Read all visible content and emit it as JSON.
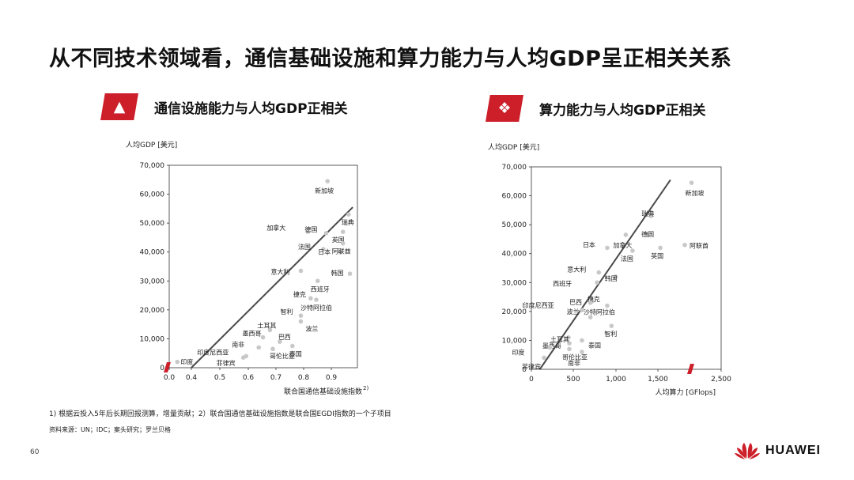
{
  "page": {
    "title": "从不同技术领域看，通信基础设施和算力能力与人均GDP呈正相关关系",
    "footnote": "1) 根据云投入5年后长期回报测算，增量贡献；2）联合国通信基础设施指数是联合国EGDI指数的一个子项目",
    "source": "资料来源：UN；IDC；案头研究；罗兰贝格",
    "page_number": "60",
    "brand": "HUAWEI",
    "accent_color": "#cc1f2a",
    "point_color": "#c8c8c8",
    "line_color": "#4a4a4a"
  },
  "panels": [
    {
      "title": "通信设施能力与人均GDP正相关",
      "icon": "telecom-tower-icon"
    },
    {
      "title": "算力能力与人均GDP正相关",
      "icon": "computing-atom-icon"
    }
  ],
  "chart_data": [
    {
      "type": "scatter",
      "title": "通信设施能力与人均GDP正相关",
      "ylabel": "人均GDP [美元]",
      "xlabel": "联合国通信基础设施指数",
      "xlabel_sup": "2)",
      "x_ticks": [
        "0.0",
        "0.4",
        "0.5",
        "0.6",
        "0.7",
        "0.8",
        "0.9"
      ],
      "y_ticks": [
        "0",
        "10,000",
        "20,000",
        "30,000",
        "40,000",
        "50,000",
        "60,000",
        "70,000"
      ],
      "axis_break": "x",
      "xlim": [
        0.33,
        1.0
      ],
      "ylim": [
        0,
        70000
      ],
      "trend_line": [
        [
          0.4,
          0
        ],
        [
          0.975,
          55500
        ]
      ],
      "points": [
        {
          "label": "新加坡",
          "x": 0.885,
          "y": 64500
        },
        {
          "label": "瑞典",
          "x": 0.96,
          "y": 53000
        },
        {
          "label": "加拿大",
          "x": 0.815,
          "y": 47000
        },
        {
          "label": "德国",
          "x": 0.88,
          "y": 46500
        },
        {
          "label": "英国",
          "x": 0.94,
          "y": 47000
        },
        {
          "label": "法国",
          "x": 0.87,
          "y": 41000
        },
        {
          "label": "日本",
          "x": 0.93,
          "y": 40000
        },
        {
          "label": "阿联酋",
          "x": 0.94,
          "y": 43000
        },
        {
          "label": "韩国",
          "x": 0.965,
          "y": 32500
        },
        {
          "label": "意大利",
          "x": 0.79,
          "y": 33500
        },
        {
          "label": "西班牙",
          "x": 0.85,
          "y": 30000
        },
        {
          "label": "捷克",
          "x": 0.825,
          "y": 24000
        },
        {
          "label": "沙特阿拉伯",
          "x": 0.845,
          "y": 23500
        },
        {
          "label": "智利",
          "x": 0.79,
          "y": 18000
        },
        {
          "label": "波兰",
          "x": 0.79,
          "y": 16000
        },
        {
          "label": "土耳其",
          "x": 0.68,
          "y": 13000
        },
        {
          "label": "墨西哥",
          "x": 0.655,
          "y": 10500
        },
        {
          "label": "巴西",
          "x": 0.715,
          "y": 9000
        },
        {
          "label": "南非",
          "x": 0.64,
          "y": 7000
        },
        {
          "label": "泰国",
          "x": 0.76,
          "y": 7500
        },
        {
          "label": "哥伦比亚",
          "x": 0.69,
          "y": 6500
        },
        {
          "label": "印度尼西亚",
          "x": 0.595,
          "y": 4000
        },
        {
          "label": "菲律宾",
          "x": 0.585,
          "y": 3500
        },
        {
          "label": "印度",
          "x": 0.35,
          "y": 2000
        }
      ]
    },
    {
      "type": "scatter",
      "title": "算力能力与人均GDP正相关",
      "ylabel": "人均GDP [美元]",
      "xlabel": "人均算力 [GFlops]",
      "x_ticks": [
        "0",
        "500",
        "1,000",
        "1,500",
        "2,500"
      ],
      "y_ticks": [
        "0",
        "10,000",
        "20,000",
        "30,000",
        "40,000",
        "50,000",
        "60,000",
        "70,000"
      ],
      "axis_break": "x",
      "xlim": [
        0,
        2500
      ],
      "ylim": [
        0,
        70000
      ],
      "trend_line": [
        [
          100,
          0
        ],
        [
          1650,
          65500
        ]
      ],
      "points": [
        {
          "label": "新加坡",
          "x": 1900,
          "y": 64500
        },
        {
          "label": "瑞典",
          "x": 1420,
          "y": 53000
        },
        {
          "label": "德国",
          "x": 1380,
          "y": 46500
        },
        {
          "label": "加拿大",
          "x": 1120,
          "y": 46500
        },
        {
          "label": "阿联酋",
          "x": 1820,
          "y": 43000
        },
        {
          "label": "日本",
          "x": 900,
          "y": 42000
        },
        {
          "label": "英国",
          "x": 1530,
          "y": 42000
        },
        {
          "label": "法国",
          "x": 1200,
          "y": 41000
        },
        {
          "label": "意大利",
          "x": 800,
          "y": 33500
        },
        {
          "label": "韩国",
          "x": 1000,
          "y": 32000
        },
        {
          "label": "西班牙",
          "x": 780,
          "y": 30000
        },
        {
          "label": "捷克",
          "x": 720,
          "y": 23500
        },
        {
          "label": "印度尼西亚",
          "x": 700,
          "y": 23000
        },
        {
          "label": "沙特阿拉伯",
          "x": 900,
          "y": 22000
        },
        {
          "label": "巴西",
          "x": 600,
          "y": 20500
        },
        {
          "label": "波兰",
          "x": 700,
          "y": 18000
        },
        {
          "label": "智利",
          "x": 950,
          "y": 15000
        },
        {
          "label": "墨西哥",
          "x": 440,
          "y": 11000
        },
        {
          "label": "泰国",
          "x": 600,
          "y": 10000
        },
        {
          "label": "土耳其",
          "x": 450,
          "y": 9000
        },
        {
          "label": "哥伦比亚",
          "x": 450,
          "y": 7000
        },
        {
          "label": "印度",
          "x": 220,
          "y": 7500
        },
        {
          "label": "菲律宾",
          "x": 150,
          "y": 4000
        },
        {
          "label": "南非",
          "x": 600,
          "y": 6000
        }
      ]
    }
  ]
}
